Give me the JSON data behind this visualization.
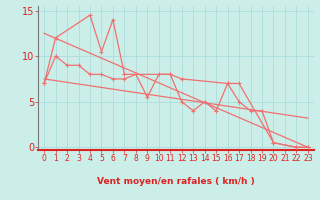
{
  "bg_color": "#cceee8",
  "grid_color": "#aadddd",
  "line_color": "#f07070",
  "tick_color": "#dd2222",
  "label_color": "#dd2222",
  "xlabel": "Vent moyen/en rafales ( km/h )",
  "ylim": [
    -0.3,
    15.5
  ],
  "xlim": [
    -0.5,
    23.5
  ],
  "yticks": [
    0,
    5,
    10,
    15
  ],
  "xticks": [
    0,
    1,
    2,
    3,
    4,
    5,
    6,
    7,
    8,
    9,
    10,
    11,
    12,
    13,
    14,
    15,
    16,
    17,
    18,
    19,
    20,
    21,
    22,
    23
  ],
  "series_wind": {
    "x": [
      0,
      1,
      2,
      3,
      4,
      5,
      6,
      7,
      8,
      9,
      10,
      11,
      12,
      13,
      14,
      15,
      16,
      17,
      18,
      19,
      20,
      22,
      23
    ],
    "y": [
      7,
      10,
      9,
      9,
      8,
      8,
      7.5,
      7.5,
      8,
      5.5,
      8,
      8,
      5,
      4,
      5,
      4,
      7,
      5,
      4,
      4,
      0.5,
      0,
      0
    ]
  },
  "series_gust": {
    "x": [
      0,
      1,
      4,
      5,
      6,
      7,
      11,
      12,
      16,
      17,
      20,
      22,
      23
    ],
    "y": [
      7,
      12,
      14.5,
      10.5,
      14,
      8,
      8,
      7.5,
      7,
      7,
      0.5,
      0,
      0
    ]
  },
  "trend_high": {
    "x": [
      0,
      23
    ],
    "y": [
      12.5,
      0.0
    ]
  },
  "trend_low": {
    "x": [
      0,
      23
    ],
    "y": [
      7.5,
      3.2
    ]
  }
}
